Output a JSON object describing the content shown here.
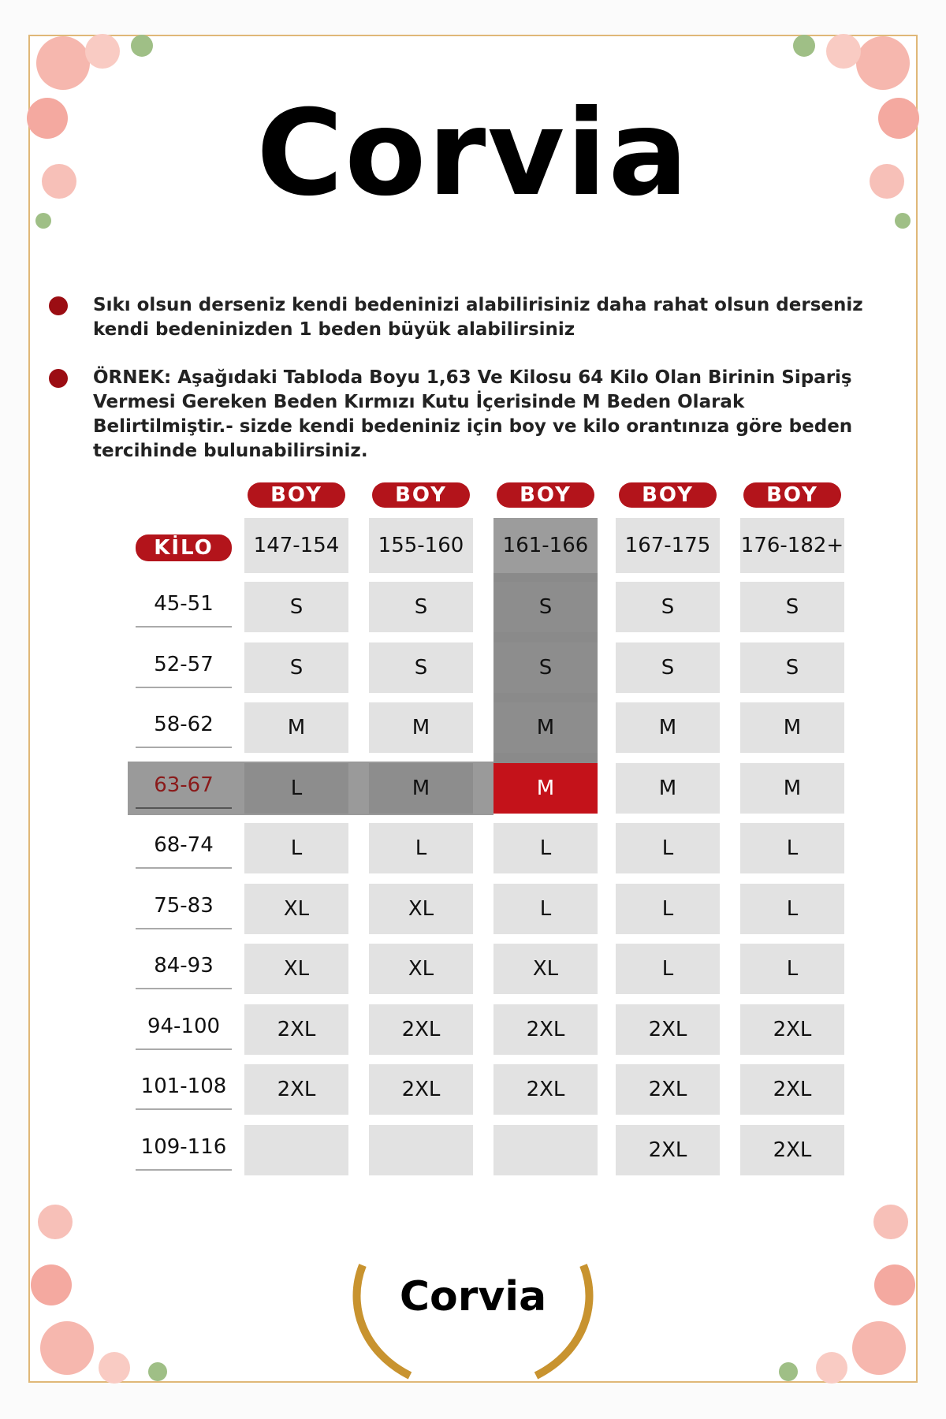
{
  "header": {
    "brand": "Corvia"
  },
  "notes": [
    "Sıkı olsun derseniz kendi bedeninizi alabilirisiniz daha rahat olsun derseniz kendi bedeninizden 1 beden büyük alabilirsiniz",
    "ÖRNEK: Aşağıdaki Tabloda Boyu 1,63 Ve Kilosu 64 Kilo Olan Birinin Sipariş Vermesi Gereken Beden Kırmızı Kutu İçerisinde M Beden Olarak Belirtilmiştir.- sizde kendi bedeniniz için boy ve kilo orantınıza göre beden tercihinde bulunabilirsiniz."
  ],
  "table": {
    "column_label": [
      "BOY",
      "BOY",
      "BOY",
      "BOY",
      "BOY"
    ],
    "row_label": "KİLO",
    "heights": [
      "147-154",
      "155-160",
      "161-166",
      "167-175",
      "176-182+"
    ],
    "rows": [
      {
        "kilo": "45-51",
        "sizes": [
          "S",
          "S",
          "S",
          "S",
          "S"
        ]
      },
      {
        "kilo": "52-57",
        "sizes": [
          "S",
          "S",
          "S",
          "S",
          "S"
        ]
      },
      {
        "kilo": "58-62",
        "sizes": [
          "M",
          "M",
          "M",
          "M",
          "M"
        ]
      },
      {
        "kilo": "63-67",
        "sizes": [
          "L",
          "M",
          "M",
          "M",
          "M"
        ]
      },
      {
        "kilo": "68-74",
        "sizes": [
          "L",
          "L",
          "L",
          "L",
          "L"
        ]
      },
      {
        "kilo": "75-83",
        "sizes": [
          "XL",
          "XL",
          "L",
          "L",
          "L"
        ]
      },
      {
        "kilo": "84-93",
        "sizes": [
          "XL",
          "XL",
          "XL",
          "L",
          "L"
        ]
      },
      {
        "kilo": "94-100",
        "sizes": [
          "2XL",
          "2XL",
          "2XL",
          "2XL",
          "2XL"
        ]
      },
      {
        "kilo": "101-108",
        "sizes": [
          "2XL",
          "2XL",
          "2XL",
          "2XL",
          "2XL"
        ]
      },
      {
        "kilo": "109-116",
        "sizes": [
          null,
          null,
          null,
          "2XL",
          "2XL"
        ]
      }
    ]
  },
  "footer": {
    "brand": "Corvia"
  }
}
